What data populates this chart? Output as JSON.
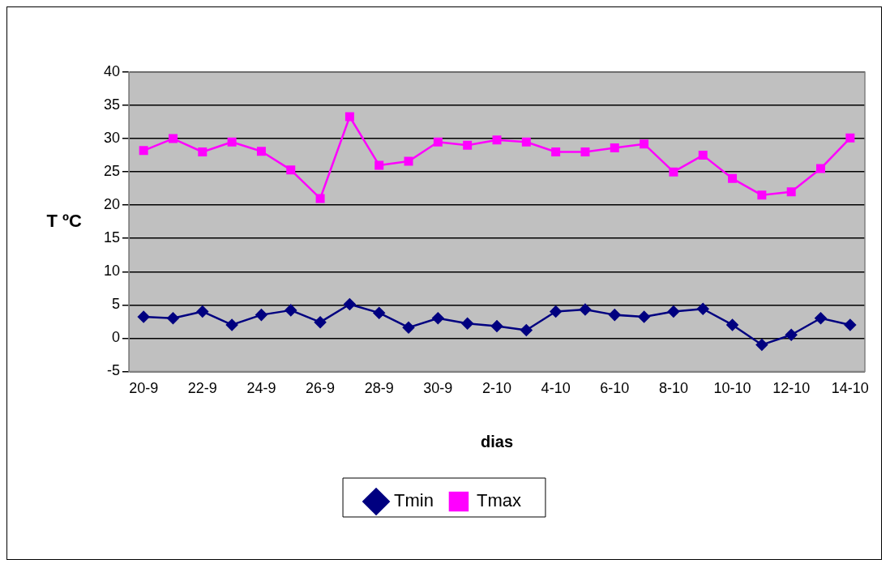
{
  "chart_data": {
    "type": "line",
    "xlabel": "dias",
    "ylabel": "T ºC",
    "categories": [
      "20-9",
      null,
      "22-9",
      null,
      "24-9",
      null,
      "26-9",
      null,
      "28-9",
      null,
      "30-9",
      null,
      "2-10",
      null,
      "4-10",
      null,
      "6-10",
      null,
      "8-10",
      null,
      "10-10",
      null,
      "12-10",
      null,
      "14-10"
    ],
    "series": [
      {
        "name": "Tmin",
        "color": "#000080",
        "marker": "diamond",
        "values": [
          3.2,
          3.0,
          4.0,
          2.0,
          3.5,
          4.2,
          2.4,
          5.1,
          3.8,
          1.6,
          3.0,
          2.2,
          1.8,
          1.2,
          4.0,
          4.3,
          3.5,
          3.2,
          4.0,
          4.4,
          2.0,
          -1.0,
          0.5,
          3.0,
          2.0
        ]
      },
      {
        "name": "Tmax",
        "color": "#ff00ff",
        "marker": "square",
        "values": [
          28.2,
          30.0,
          28.0,
          29.5,
          28.1,
          25.3,
          21.0,
          33.3,
          26.0,
          26.6,
          29.5,
          29.0,
          29.8,
          29.5,
          28.0,
          28.0,
          28.6,
          29.2,
          25.0,
          27.5,
          24.0,
          21.5,
          22.0,
          25.5,
          30.1
        ]
      }
    ],
    "ylim": [
      -5,
      40
    ],
    "yticks": [
      -5,
      0,
      5,
      10,
      15,
      20,
      25,
      30,
      35,
      40
    ],
    "grid": "y",
    "legend": "bottom",
    "line_style": "solid"
  }
}
